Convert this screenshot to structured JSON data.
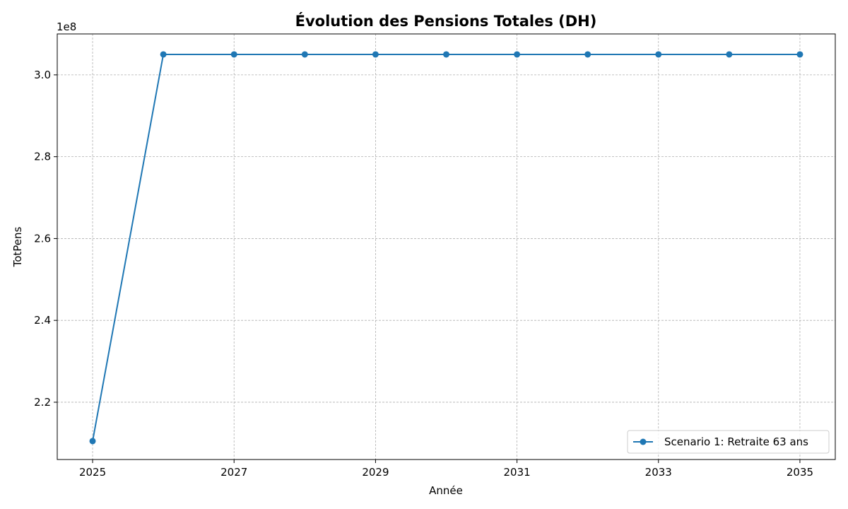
{
  "chart_data": {
    "type": "line",
    "title": "Évolution des Pensions Totales (DH)",
    "xlabel": "Année",
    "ylabel": "TotPens",
    "y_offset_label": "1e8",
    "x": [
      2025,
      2026,
      2027,
      2028,
      2029,
      2030,
      2031,
      2032,
      2033,
      2034,
      2035
    ],
    "xlim": [
      2024.5,
      2035.5
    ],
    "ylim": [
      2.06,
      3.1
    ],
    "x_ticks": [
      2025,
      2027,
      2029,
      2031,
      2033,
      2035
    ],
    "x_tick_labels": [
      "2025",
      "2027",
      "2029",
      "2031",
      "2033",
      "2035"
    ],
    "y_ticks": [
      2.2,
      2.4,
      2.6,
      2.8,
      3.0
    ],
    "y_tick_labels": [
      "2.2",
      "2.4",
      "2.6",
      "2.8",
      "3.0"
    ],
    "grid": true,
    "legend_position": "lower-right",
    "series": [
      {
        "name": "Scenario 1: Retraite 63 ans",
        "color": "#1f77b4",
        "marker": "circle",
        "values": [
          2.105,
          3.05,
          3.05,
          3.05,
          3.05,
          3.05,
          3.05,
          3.05,
          3.05,
          3.05,
          3.05
        ]
      }
    ]
  }
}
